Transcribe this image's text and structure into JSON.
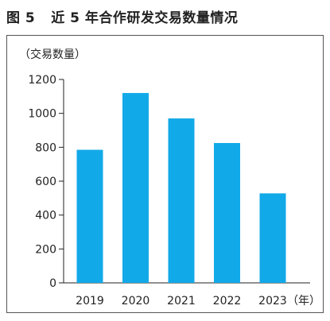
{
  "figure": {
    "number": "图 5",
    "title": "近 5 年合作研发交易数量情况"
  },
  "chart_data": {
    "type": "bar",
    "title": "近 5 年合作研发交易数量情况",
    "ylabel": "（交易数量）",
    "xlabel": "（年）",
    "categories": [
      "2019",
      "2020",
      "2021",
      "2022",
      "2023"
    ],
    "values": [
      785,
      1120,
      970,
      825,
      528
    ],
    "ylim": [
      0,
      1200
    ],
    "yticks": [
      0,
      200,
      400,
      600,
      800,
      1000,
      1200
    ],
    "grid": false,
    "bar_color": "#12a9e9"
  }
}
